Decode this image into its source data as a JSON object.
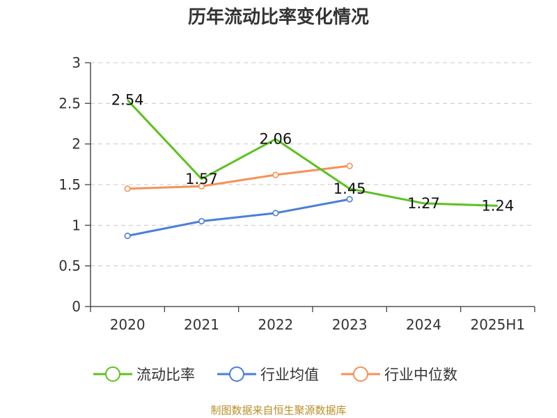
{
  "chart_data": {
    "type": "line",
    "title": "历年流动比率变化情况",
    "categories": [
      "2020",
      "2021",
      "2022",
      "2023",
      "2024",
      "2025H1"
    ],
    "ylim": [
      0,
      3
    ],
    "yticks": [
      "0",
      "0.5",
      "1",
      "1.5",
      "2",
      "2.5",
      "3"
    ],
    "grid": true,
    "legend_position": "bottom",
    "series": [
      {
        "name": "流动比率",
        "color": "#5cc11f",
        "values": [
          2.54,
          1.57,
          2.06,
          1.45,
          1.27,
          1.24
        ],
        "labels": [
          "2.54",
          "1.57",
          "2.06",
          "1.45",
          "1.27",
          "1.24"
        ],
        "markers": false
      },
      {
        "name": "行业均值",
        "color": "#4a7fd8",
        "values": [
          0.87,
          1.05,
          1.15,
          1.32,
          null,
          null
        ],
        "markers": true
      },
      {
        "name": "行业中位数",
        "color": "#f79056",
        "values": [
          1.45,
          1.48,
          1.62,
          1.73,
          null,
          null
        ],
        "markers": true
      }
    ]
  },
  "source": "制图数据来自恒生聚源数据库"
}
